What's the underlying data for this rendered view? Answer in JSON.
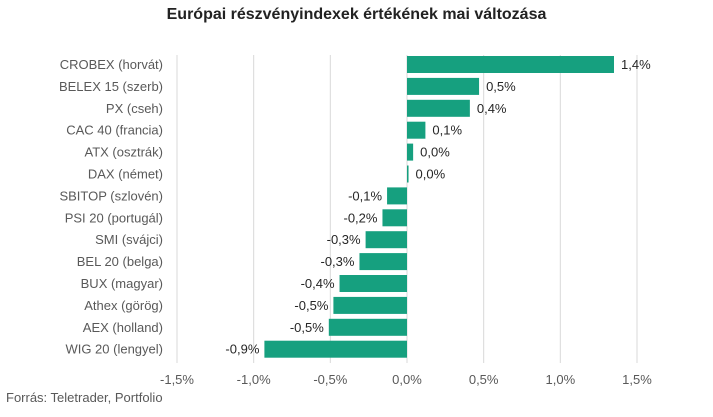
{
  "colors": {
    "bar": "#16a07f",
    "grid": "#d9d9d9",
    "text": "#595959",
    "title": "#222222"
  },
  "source": "Forrás: Teletrader, Portfolio",
  "chart_data": {
    "type": "bar",
    "orientation": "horizontal",
    "title": "Európai részvényindexek értékének mai változása",
    "categories": [
      "CROBEX (horvát)",
      "BELEX 15 (szerb)",
      "PX (cseh)",
      "CAC 40 (francia)",
      "ATX (osztrák)",
      "DAX (német)",
      "SBITOP (szlovén)",
      "PSI 20 (portugál)",
      "SMI (svájci)",
      "BEL 20 (belga)",
      "BUX (magyar)",
      "Athex (görög)",
      "AEX (holland)",
      "WIG 20 (lengyel)"
    ],
    "values": [
      1.35,
      0.47,
      0.41,
      0.12,
      0.04,
      0.01,
      -0.13,
      -0.16,
      -0.27,
      -0.31,
      -0.44,
      -0.48,
      -0.51,
      -0.93
    ],
    "data_labels": [
      "1,4%",
      "0,5%",
      "0,4%",
      "0,1%",
      "0,0%",
      "0,0%",
      "-0,1%",
      "-0,2%",
      "-0,3%",
      "-0,3%",
      "-0,4%",
      "-0,5%",
      "-0,5%",
      "-0,9%"
    ],
    "xlim": [
      -1.5,
      1.5
    ],
    "xticks": [
      -1.5,
      -1.0,
      -0.5,
      0.0,
      0.5,
      1.0,
      1.5
    ],
    "xtick_labels": [
      "-1,5%",
      "-1,0%",
      "-0,5%",
      "0,0%",
      "0,5%",
      "1,0%",
      "1,5%"
    ],
    "grid": "vertical"
  }
}
